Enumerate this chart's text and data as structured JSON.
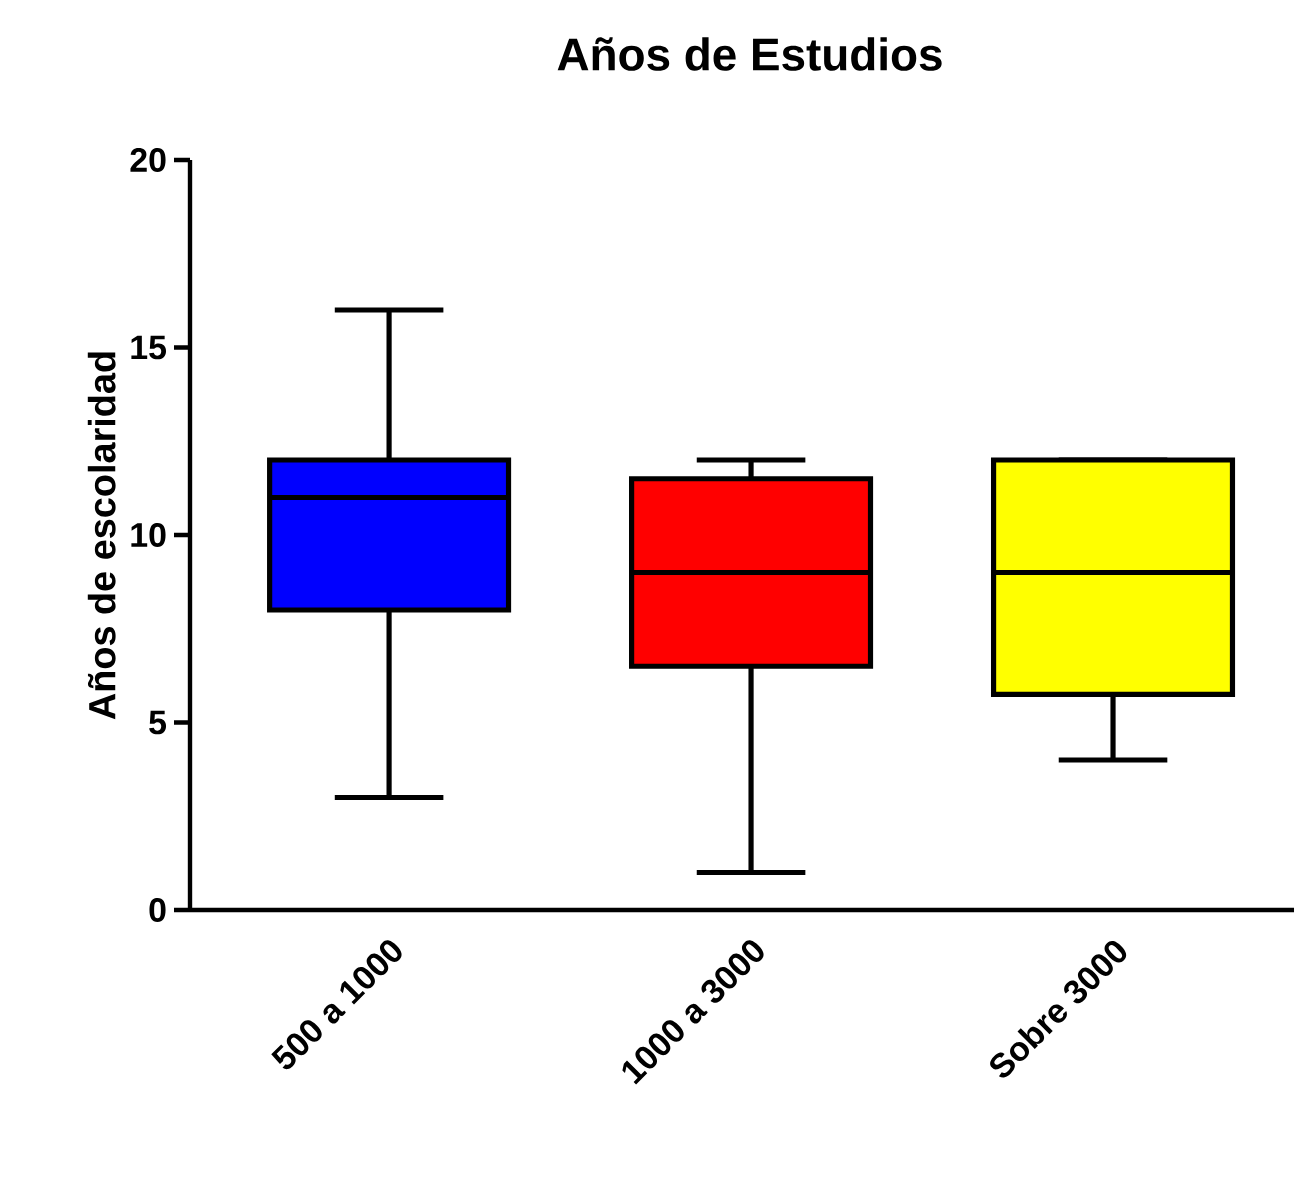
{
  "chart_data": {
    "type": "box",
    "title": "Años de Estudios",
    "ylabel": "Años de escolaridad",
    "categories": [
      "500 a 1000",
      "1000 a 3000",
      "Sobre 3000"
    ],
    "colors": [
      "#0000ff",
      "#ff0000",
      "#ffff00"
    ],
    "boxes": [
      {
        "low": 3,
        "q1": 8,
        "median": 11,
        "q3": 12,
        "high": 16
      },
      {
        "low": 1,
        "q1": 6.5,
        "median": 9,
        "q3": 11.5,
        "high": 12
      },
      {
        "low": 4,
        "q1": 5.75,
        "median": 9,
        "q3": 12,
        "high": 12
      }
    ],
    "ylim": [
      0,
      20
    ],
    "yticks": [
      0,
      5,
      10,
      15,
      20
    ]
  }
}
